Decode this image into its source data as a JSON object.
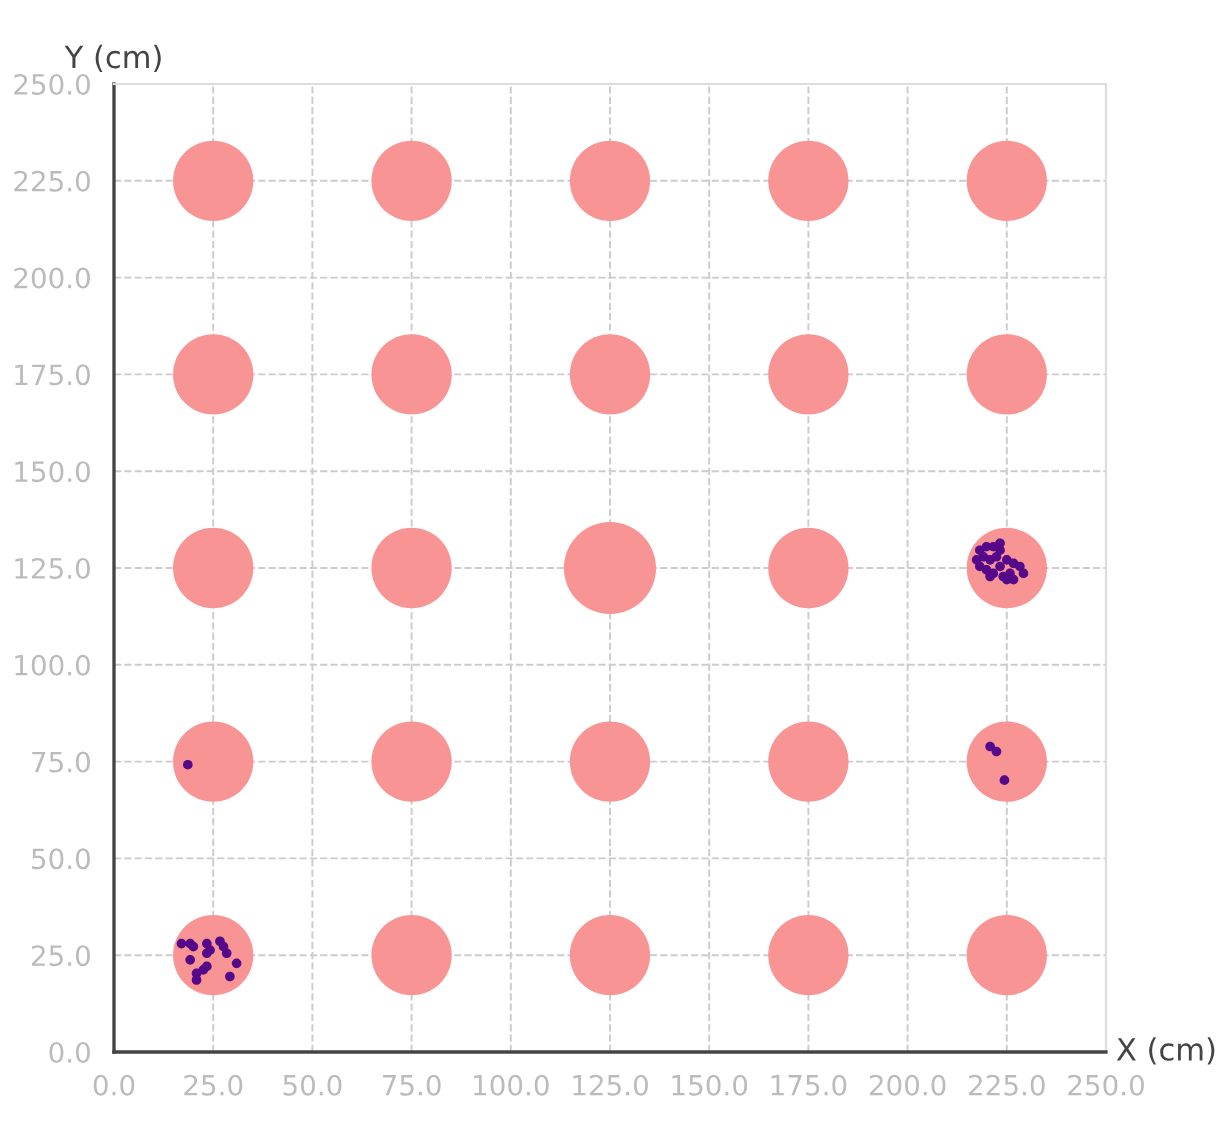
{
  "chart_data": {
    "type": "scatter",
    "xlabel": "X (cm)",
    "ylabel": "Y (cm)",
    "xlim": [
      0,
      250
    ],
    "ylim": [
      0,
      250
    ],
    "xticks": [
      {
        "value": 0,
        "label": "0.0"
      },
      {
        "value": 25,
        "label": "25.0"
      },
      {
        "value": 50,
        "label": "50.0"
      },
      {
        "value": 75,
        "label": "75.0"
      },
      {
        "value": 100,
        "label": "100.0"
      },
      {
        "value": 125,
        "label": "125.0"
      },
      {
        "value": 150,
        "label": "150.0"
      },
      {
        "value": 175,
        "label": "175.0"
      },
      {
        "value": 200,
        "label": "200.0"
      },
      {
        "value": 225,
        "label": "225.0"
      },
      {
        "value": 250,
        "label": "250.0"
      }
    ],
    "yticks": [
      {
        "value": 0,
        "label": "0.0"
      },
      {
        "value": 25,
        "label": "25.0"
      },
      {
        "value": 50,
        "label": "50.0"
      },
      {
        "value": 75,
        "label": "75.0"
      },
      {
        "value": 100,
        "label": "100.0"
      },
      {
        "value": 125,
        "label": "125.0"
      },
      {
        "value": 150,
        "label": "150.0"
      },
      {
        "value": 175,
        "label": "175.0"
      },
      {
        "value": 200,
        "label": "200.0"
      },
      {
        "value": 225,
        "label": "225.0"
      },
      {
        "value": 250,
        "label": "250.0"
      }
    ],
    "grid": true,
    "legend": false,
    "marker": "circle",
    "series": [
      {
        "type": "bubble",
        "color": "#f99494",
        "x": [
          25,
          75,
          125,
          175,
          225,
          25,
          75,
          125,
          175,
          225,
          25,
          75,
          125,
          175,
          225,
          25,
          75,
          125,
          175,
          225,
          25,
          75,
          125,
          175,
          225
        ],
        "values": [
          25,
          25,
          25,
          25,
          25,
          75,
          75,
          75,
          75,
          75,
          125,
          125,
          125,
          125,
          125,
          175,
          175,
          175,
          175,
          175,
          225,
          225,
          225,
          225,
          225
        ],
        "sizes": [
          0.76,
          0.76,
          0.76,
          0.76,
          0.76,
          0.76,
          0.76,
          0.76,
          0.76,
          0.76,
          0.76,
          0.76,
          1,
          0.76,
          0.76,
          0.76,
          0.76,
          0.76,
          0.76,
          0.76,
          0.76,
          0.76,
          0.76,
          0.76,
          0.76
        ]
      },
      {
        "type": "scatter",
        "color": "#55088a",
        "x": [
          17.0,
          19.2,
          20.0,
          23.4,
          26.7,
          27.6,
          19.2,
          23.4,
          24.2,
          28.4,
          30.9,
          20.8,
          22.5,
          23.4,
          29.2,
          20.8,
          18.6,
          220.8,
          222.4,
          224.4,
          218.2,
          219.9,
          221.6,
          223.3,
          217.4,
          219.1,
          220.8,
          222.4,
          218.2,
          219.9,
          221.6,
          223.3,
          225.0,
          226.7,
          228.3,
          225.8,
          224.1,
          229.2,
          225.0,
          226.7,
          220.8,
          223.3
        ],
        "values": [
          28.0,
          28.0,
          27.2,
          28.0,
          28.6,
          27.2,
          23.8,
          25.5,
          26.3,
          25.5,
          22.9,
          20.3,
          21.2,
          22.1,
          19.5,
          18.6,
          74.2,
          78.9,
          77.6,
          70.2,
          129.6,
          130.5,
          130.5,
          131.4,
          127.1,
          127.9,
          127.1,
          127.9,
          125.4,
          124.5,
          123.6,
          125.4,
          127.1,
          126.2,
          125.4,
          123.6,
          122.8,
          123.6,
          122.0,
          122.0,
          122.8,
          129.6
        ]
      }
    ]
  }
}
